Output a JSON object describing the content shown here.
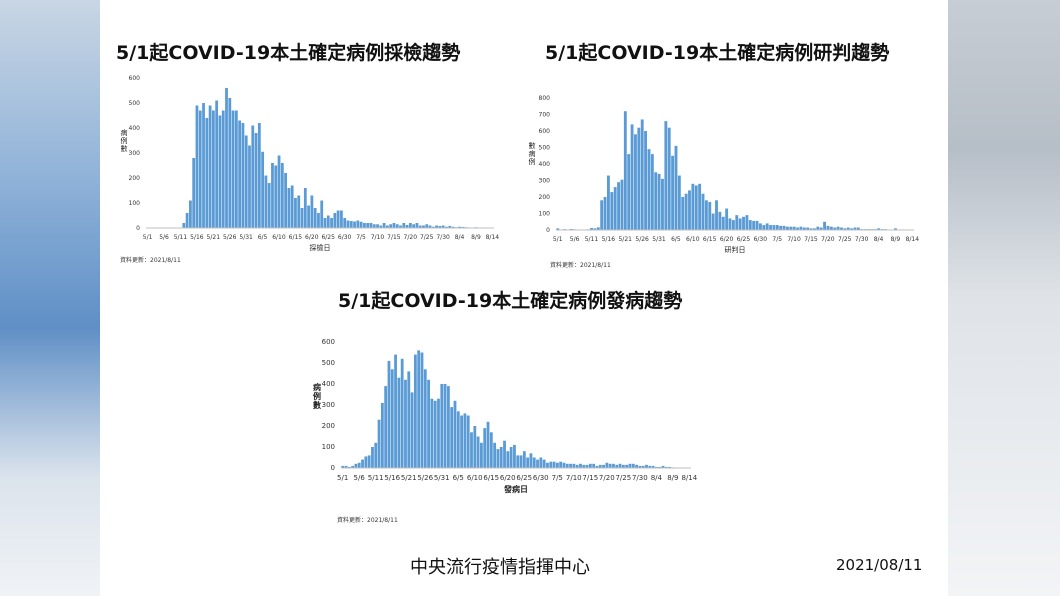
{
  "footer": {
    "org": "中央流行疫情指揮中心",
    "date": "2021/08/11"
  },
  "colors": {
    "bar": "#5b9bd5",
    "axis": "#bfbfbf"
  },
  "chart_data": [
    {
      "type": "bar",
      "title": "5/1起COVID-19本土確定病例採檢趨勢",
      "xlabel": "採檢日",
      "ylabel": "病例數",
      "ylim": [
        0,
        600
      ],
      "yticks": [
        0,
        100,
        200,
        300,
        400,
        500,
        600
      ],
      "xticks": [
        "5/1",
        "5/6",
        "5/11",
        "5/16",
        "5/21",
        "5/26",
        "5/31",
        "6/5",
        "6/10",
        "6/15",
        "6/20",
        "6/25",
        "6/30",
        "7/5",
        "7/10",
        "7/15",
        "7/20",
        "7/25",
        "7/30",
        "8/4",
        "8/9",
        "8/14"
      ],
      "source": "資料更新：2021/8/11",
      "x": [
        "5/1",
        "5/2",
        "5/3",
        "5/4",
        "5/5",
        "5/6",
        "5/7",
        "5/8",
        "5/9",
        "5/10",
        "5/11",
        "5/12",
        "5/13",
        "5/14",
        "5/15",
        "5/16",
        "5/17",
        "5/18",
        "5/19",
        "5/20",
        "5/21",
        "5/22",
        "5/23",
        "5/24",
        "5/25",
        "5/26",
        "5/27",
        "5/28",
        "5/29",
        "5/30",
        "5/31",
        "6/1",
        "6/2",
        "6/3",
        "6/4",
        "6/5",
        "6/6",
        "6/7",
        "6/8",
        "6/9",
        "6/10",
        "6/11",
        "6/12",
        "6/13",
        "6/14",
        "6/15",
        "6/16",
        "6/17",
        "6/18",
        "6/19",
        "6/20",
        "6/21",
        "6/22",
        "6/23",
        "6/24",
        "6/25",
        "6/26",
        "6/27",
        "6/28",
        "6/29",
        "6/30",
        "7/1",
        "7/2",
        "7/3",
        "7/4",
        "7/5",
        "7/6",
        "7/7",
        "7/8",
        "7/9",
        "7/10",
        "7/11",
        "7/12",
        "7/13",
        "7/14",
        "7/15",
        "7/16",
        "7/17",
        "7/18",
        "7/19",
        "7/20",
        "7/21",
        "7/22",
        "7/23",
        "7/24",
        "7/25",
        "7/26",
        "7/27",
        "7/28",
        "7/29",
        "7/30",
        "7/31",
        "8/1",
        "8/2",
        "8/3",
        "8/4",
        "8/5",
        "8/6",
        "8/7",
        "8/8",
        "8/9",
        "8/10",
        "8/11"
      ],
      "values": [
        0,
        0,
        0,
        0,
        0,
        0,
        0,
        0,
        0,
        0,
        2,
        20,
        60,
        110,
        280,
        490,
        470,
        500,
        440,
        490,
        470,
        510,
        450,
        470,
        560,
        520,
        470,
        470,
        430,
        420,
        370,
        330,
        410,
        380,
        420,
        305,
        210,
        180,
        260,
        250,
        290,
        260,
        220,
        160,
        170,
        120,
        130,
        80,
        160,
        90,
        130,
        80,
        60,
        110,
        40,
        50,
        40,
        60,
        70,
        70,
        40,
        30,
        28,
        26,
        30,
        25,
        20,
        20,
        20,
        15,
        15,
        10,
        20,
        10,
        15,
        20,
        15,
        10,
        20,
        12,
        20,
        15,
        20,
        10,
        10,
        15,
        10,
        5,
        10,
        8,
        10,
        5,
        8,
        5,
        3,
        5,
        4,
        3,
        2,
        2,
        3,
        2,
        1
      ]
    },
    {
      "type": "bar",
      "title": "5/1起COVID-19本土確定病例研判趨勢",
      "xlabel": "研判日",
      "ylabel": "數病例",
      "ylim": [
        0,
        800
      ],
      "yticks": [
        0,
        100,
        200,
        300,
        400,
        500,
        600,
        700,
        800
      ],
      "xticks": [
        "5/1",
        "5/6",
        "5/11",
        "5/16",
        "5/21",
        "5/26",
        "5/31",
        "6/5",
        "6/10",
        "6/15",
        "6/20",
        "6/25",
        "6/30",
        "7/5",
        "7/10",
        "7/15",
        "7/20",
        "7/25",
        "7/30",
        "8/4",
        "8/9",
        "8/14"
      ],
      "source": "資料更新：2021/8/11",
      "x": [
        "5/1",
        "5/2",
        "5/3",
        "5/4",
        "5/5",
        "5/6",
        "5/7",
        "5/8",
        "5/9",
        "5/10",
        "5/11",
        "5/12",
        "5/13",
        "5/14",
        "5/15",
        "5/16",
        "5/17",
        "5/18",
        "5/19",
        "5/20",
        "5/21",
        "5/22",
        "5/23",
        "5/24",
        "5/25",
        "5/26",
        "5/27",
        "5/28",
        "5/29",
        "5/30",
        "5/31",
        "6/1",
        "6/2",
        "6/3",
        "6/4",
        "6/5",
        "6/6",
        "6/7",
        "6/8",
        "6/9",
        "6/10",
        "6/11",
        "6/12",
        "6/13",
        "6/14",
        "6/15",
        "6/16",
        "6/17",
        "6/18",
        "6/19",
        "6/20",
        "6/21",
        "6/22",
        "6/23",
        "6/24",
        "6/25",
        "6/26",
        "6/27",
        "6/28",
        "6/29",
        "6/30",
        "7/1",
        "7/2",
        "7/3",
        "7/4",
        "7/5",
        "7/6",
        "7/7",
        "7/8",
        "7/9",
        "7/10",
        "7/11",
        "7/12",
        "7/13",
        "7/14",
        "7/15",
        "7/16",
        "7/17",
        "7/18",
        "7/19",
        "7/20",
        "7/21",
        "7/22",
        "7/23",
        "7/24",
        "7/25",
        "7/26",
        "7/27",
        "7/28",
        "7/29",
        "7/30",
        "7/31",
        "8/1",
        "8/2",
        "8/3",
        "8/4",
        "8/5",
        "8/6",
        "8/7",
        "8/8",
        "8/9",
        "8/10",
        "8/11"
      ],
      "values": [
        10,
        2,
        5,
        3,
        6,
        4,
        0,
        1,
        2,
        4,
        12,
        10,
        16,
        180,
        200,
        330,
        230,
        260,
        290,
        305,
        720,
        460,
        640,
        580,
        620,
        670,
        600,
        490,
        460,
        350,
        340,
        310,
        660,
        620,
        450,
        510,
        330,
        200,
        220,
        240,
        280,
        270,
        280,
        220,
        180,
        170,
        100,
        180,
        110,
        80,
        130,
        70,
        60,
        90,
        70,
        80,
        90,
        60,
        55,
        55,
        40,
        30,
        40,
        30,
        30,
        30,
        25,
        25,
        20,
        20,
        20,
        15,
        20,
        15,
        15,
        10,
        10,
        20,
        15,
        50,
        25,
        20,
        15,
        20,
        15,
        10,
        15,
        10,
        15,
        15,
        5,
        5,
        5,
        5,
        5,
        10,
        5,
        5,
        3,
        3,
        10,
        2,
        2
      ]
    },
    {
      "type": "bar",
      "title": "5/1起COVID-19本土確定病例發病趨勢",
      "xlabel": "發病日",
      "ylabel": "病例數",
      "ylim": [
        0,
        600
      ],
      "yticks": [
        0,
        100,
        200,
        300,
        400,
        500,
        600
      ],
      "xticks": [
        "5/1",
        "5/6",
        "5/11",
        "5/16",
        "5/21",
        "5/26",
        "5/31",
        "6/5",
        "6/10",
        "6/15",
        "6/20",
        "6/25",
        "6/30",
        "7/5",
        "7/10",
        "7/15",
        "7/20",
        "7/25",
        "7/30",
        "8/4",
        "8/9",
        "8/14"
      ],
      "source": "資料更新：2021/8/11",
      "x": [
        "5/1",
        "5/2",
        "5/3",
        "5/4",
        "5/5",
        "5/6",
        "5/7",
        "5/8",
        "5/9",
        "5/10",
        "5/11",
        "5/12",
        "5/13",
        "5/14",
        "5/15",
        "5/16",
        "5/17",
        "5/18",
        "5/19",
        "5/20",
        "5/21",
        "5/22",
        "5/23",
        "5/24",
        "5/25",
        "5/26",
        "5/27",
        "5/28",
        "5/29",
        "5/30",
        "5/31",
        "6/1",
        "6/2",
        "6/3",
        "6/4",
        "6/5",
        "6/6",
        "6/7",
        "6/8",
        "6/9",
        "6/10",
        "6/11",
        "6/12",
        "6/13",
        "6/14",
        "6/15",
        "6/16",
        "6/17",
        "6/18",
        "6/19",
        "6/20",
        "6/21",
        "6/22",
        "6/23",
        "6/24",
        "6/25",
        "6/26",
        "6/27",
        "6/28",
        "6/29",
        "6/30",
        "7/1",
        "7/2",
        "7/3",
        "7/4",
        "7/5",
        "7/6",
        "7/7",
        "7/8",
        "7/9",
        "7/10",
        "7/11",
        "7/12",
        "7/13",
        "7/14",
        "7/15",
        "7/16",
        "7/17",
        "7/18",
        "7/19",
        "7/20",
        "7/21",
        "7/22",
        "7/23",
        "7/24",
        "7/25",
        "7/26",
        "7/27",
        "7/28",
        "7/29",
        "7/30",
        "7/31",
        "8/1",
        "8/2",
        "8/3",
        "8/4",
        "8/5",
        "8/6",
        "8/7",
        "8/8",
        "8/9",
        "8/10",
        "8/11"
      ],
      "values": [
        10,
        10,
        5,
        10,
        20,
        25,
        40,
        55,
        60,
        100,
        120,
        230,
        310,
        390,
        510,
        470,
        540,
        430,
        520,
        420,
        460,
        360,
        540,
        560,
        550,
        470,
        420,
        330,
        320,
        330,
        400,
        400,
        390,
        290,
        320,
        270,
        250,
        260,
        250,
        170,
        200,
        150,
        120,
        190,
        220,
        170,
        120,
        90,
        100,
        130,
        80,
        100,
        110,
        60,
        60,
        80,
        50,
        70,
        50,
        40,
        50,
        40,
        25,
        30,
        30,
        25,
        30,
        25,
        20,
        20,
        20,
        15,
        20,
        15,
        15,
        20,
        20,
        10,
        15,
        15,
        25,
        20,
        20,
        15,
        20,
        15,
        15,
        20,
        20,
        15,
        10,
        10,
        15,
        10,
        10,
        5,
        5,
        10,
        5,
        5,
        3,
        2,
        2
      ]
    }
  ]
}
